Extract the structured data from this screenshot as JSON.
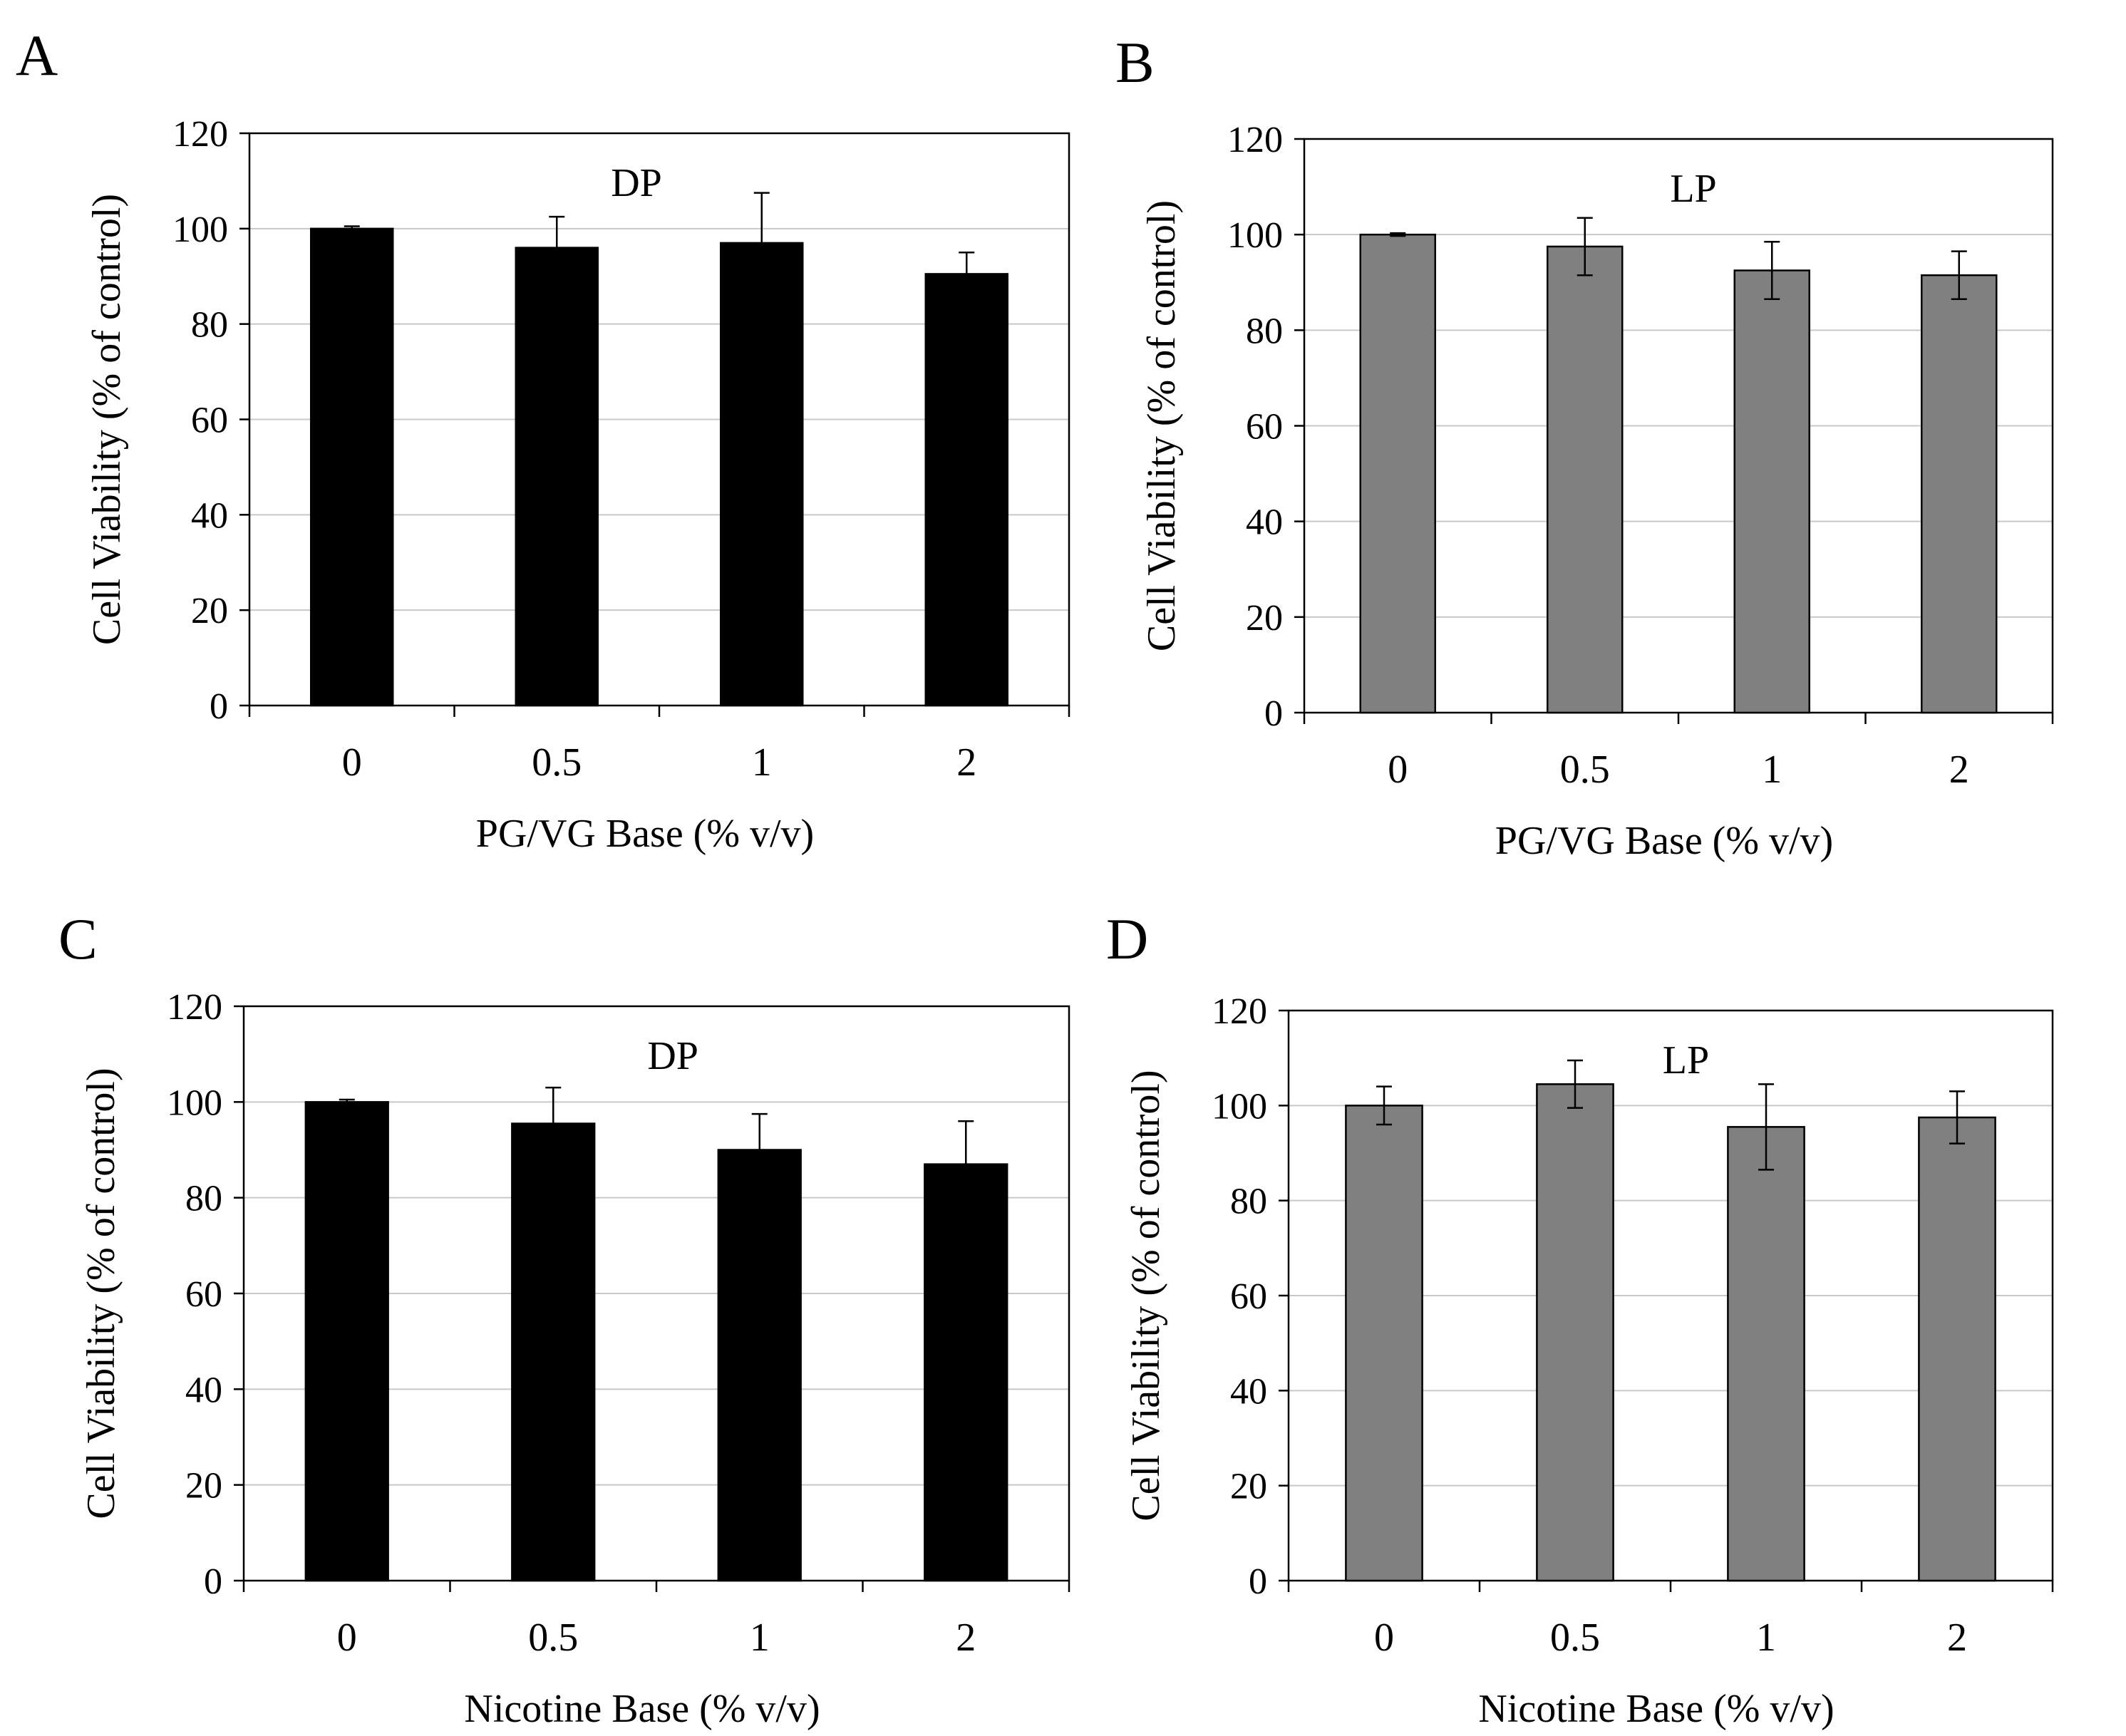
{
  "figure": {
    "description_hidden": false
  },
  "chart_data": [
    {
      "id": "A",
      "panel_label": "A",
      "type": "bar",
      "title": "DP",
      "categories": [
        "0",
        "0.5",
        "1",
        "2"
      ],
      "values": [
        100,
        96,
        97,
        90.5
      ],
      "errors": [
        0.5,
        6.5,
        10.5,
        4.5
      ],
      "ylabel": "Cell Viability (% of  control)",
      "xlabel": "PG/VG Base (% v/v)",
      "ylim": [
        0,
        120
      ],
      "yticks": [
        "0",
        "20",
        "40",
        "60",
        "80",
        "100",
        "120"
      ],
      "grid": true,
      "bar_color": "#000000"
    },
    {
      "id": "B",
      "panel_label": "B",
      "type": "bar",
      "title": "LP",
      "categories": [
        "0",
        "0.5",
        "1",
        "2"
      ],
      "values": [
        100,
        97.5,
        92.5,
        91.5
      ],
      "errors": [
        0.3,
        6,
        6,
        5
      ],
      "ylabel": "Cell Viability (% of control)",
      "xlabel": "PG/VG Base (% v/v)",
      "ylim": [
        0,
        120
      ],
      "yticks": [
        "0",
        "20",
        "40",
        "60",
        "80",
        "100",
        "120"
      ],
      "grid": true,
      "bar_color": "#808080"
    },
    {
      "id": "C",
      "panel_label": "C",
      "type": "bar",
      "title": "DP",
      "categories": [
        "0",
        "0.5",
        "1",
        "2"
      ],
      "values": [
        100,
        95.5,
        90,
        87
      ],
      "errors": [
        0.5,
        7.5,
        7.5,
        9
      ],
      "ylabel": "Cell Viability (% of  control)",
      "xlabel": "Nicotine Base (% v/v)",
      "ylim": [
        0,
        120
      ],
      "yticks": [
        "0",
        "20",
        "40",
        "60",
        "80",
        "100",
        "120"
      ],
      "grid": true,
      "bar_color": "#000000"
    },
    {
      "id": "D",
      "panel_label": "D",
      "type": "bar",
      "title": "LP",
      "categories": [
        "0",
        "0.5",
        "1",
        "2"
      ],
      "values": [
        100,
        104.5,
        95.5,
        97.5
      ],
      "errors": [
        4,
        5,
        9,
        5.5
      ],
      "ylabel": "Cell Viability (% of control)",
      "xlabel": "Nicotine Base (% v/v)",
      "ylim": [
        0,
        120
      ],
      "yticks": [
        "0",
        "20",
        "40",
        "60",
        "80",
        "100",
        "120"
      ],
      "grid": true,
      "bar_color": "#808080"
    }
  ]
}
